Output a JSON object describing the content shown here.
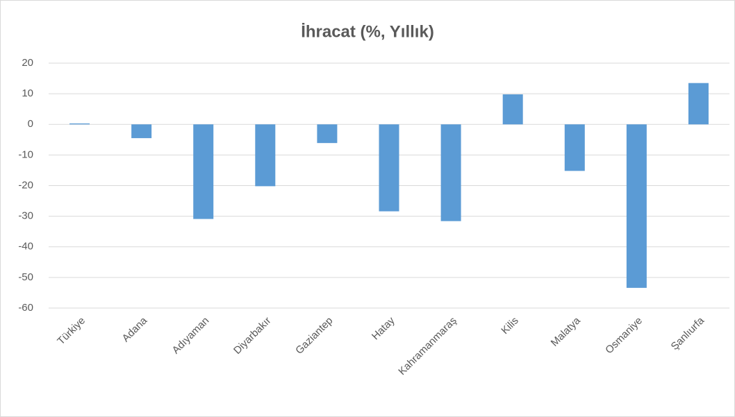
{
  "chart_data": {
    "type": "bar",
    "title": "İhracat (%, Yıllık)",
    "categories": [
      "Türkiye",
      "Adana",
      "Adıyaman",
      "Diyarbakır",
      "Gaziantep",
      "Hatay",
      "Kahramanmaraş",
      "Kilis",
      "Malatya",
      "Osmaniye",
      "Şanlıurfa"
    ],
    "values": [
      0.3,
      -4.5,
      -30.9,
      -20.2,
      -6.1,
      -28.4,
      -31.6,
      9.8,
      -15.2,
      -53.4,
      13.5
    ],
    "color": "#5b9bd5",
    "ylim": [
      -60,
      20
    ],
    "yticks": [
      -60,
      -50,
      -40,
      -30,
      -20,
      -10,
      0,
      10,
      20
    ],
    "grid": true
  }
}
